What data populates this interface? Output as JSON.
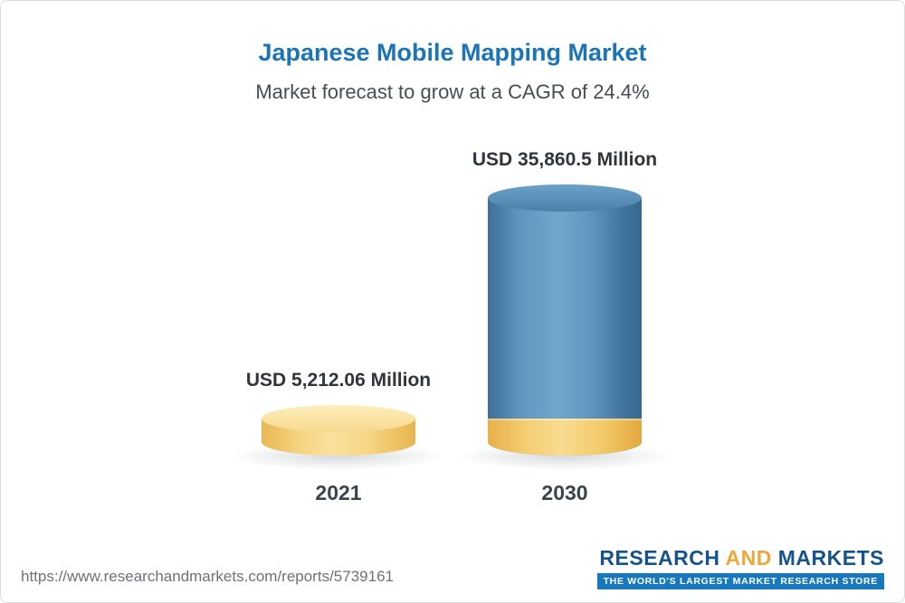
{
  "header": {
    "title": "Japanese Mobile Mapping Market",
    "subtitle": "Market forecast to grow at a CAGR of 24.4%"
  },
  "chart_data": {
    "type": "bar",
    "categories": [
      "2021",
      "2030"
    ],
    "values": [
      5212.06,
      35860.5
    ],
    "value_labels": [
      "USD 5,212.06 Million",
      "USD 35,860.5 Million"
    ],
    "title": "Japanese Mobile Mapping Market",
    "subtitle": "Market forecast to grow at a CAGR of 24.4%",
    "xlabel": "",
    "ylabel": "USD Million",
    "ylim": [
      0,
      36000
    ],
    "legend": "none",
    "grid": false,
    "colors": {
      "2021": "#f5cf73",
      "2030": "#4d7fa8",
      "2030_base_band": "#f2c968"
    },
    "cagr": "24.4%"
  },
  "footer": {
    "url": "https://www.researchandmarkets.com/reports/5739161",
    "logo": {
      "part1": "RESEARCH",
      "part2": "AND",
      "part3": "MARKETS",
      "tagline": "THE WORLD'S LARGEST MARKET RESEARCH STORE",
      "brand_blue": "#14538e",
      "brand_gold": "#f0a63a",
      "tagline_bg": "#1878be"
    }
  }
}
